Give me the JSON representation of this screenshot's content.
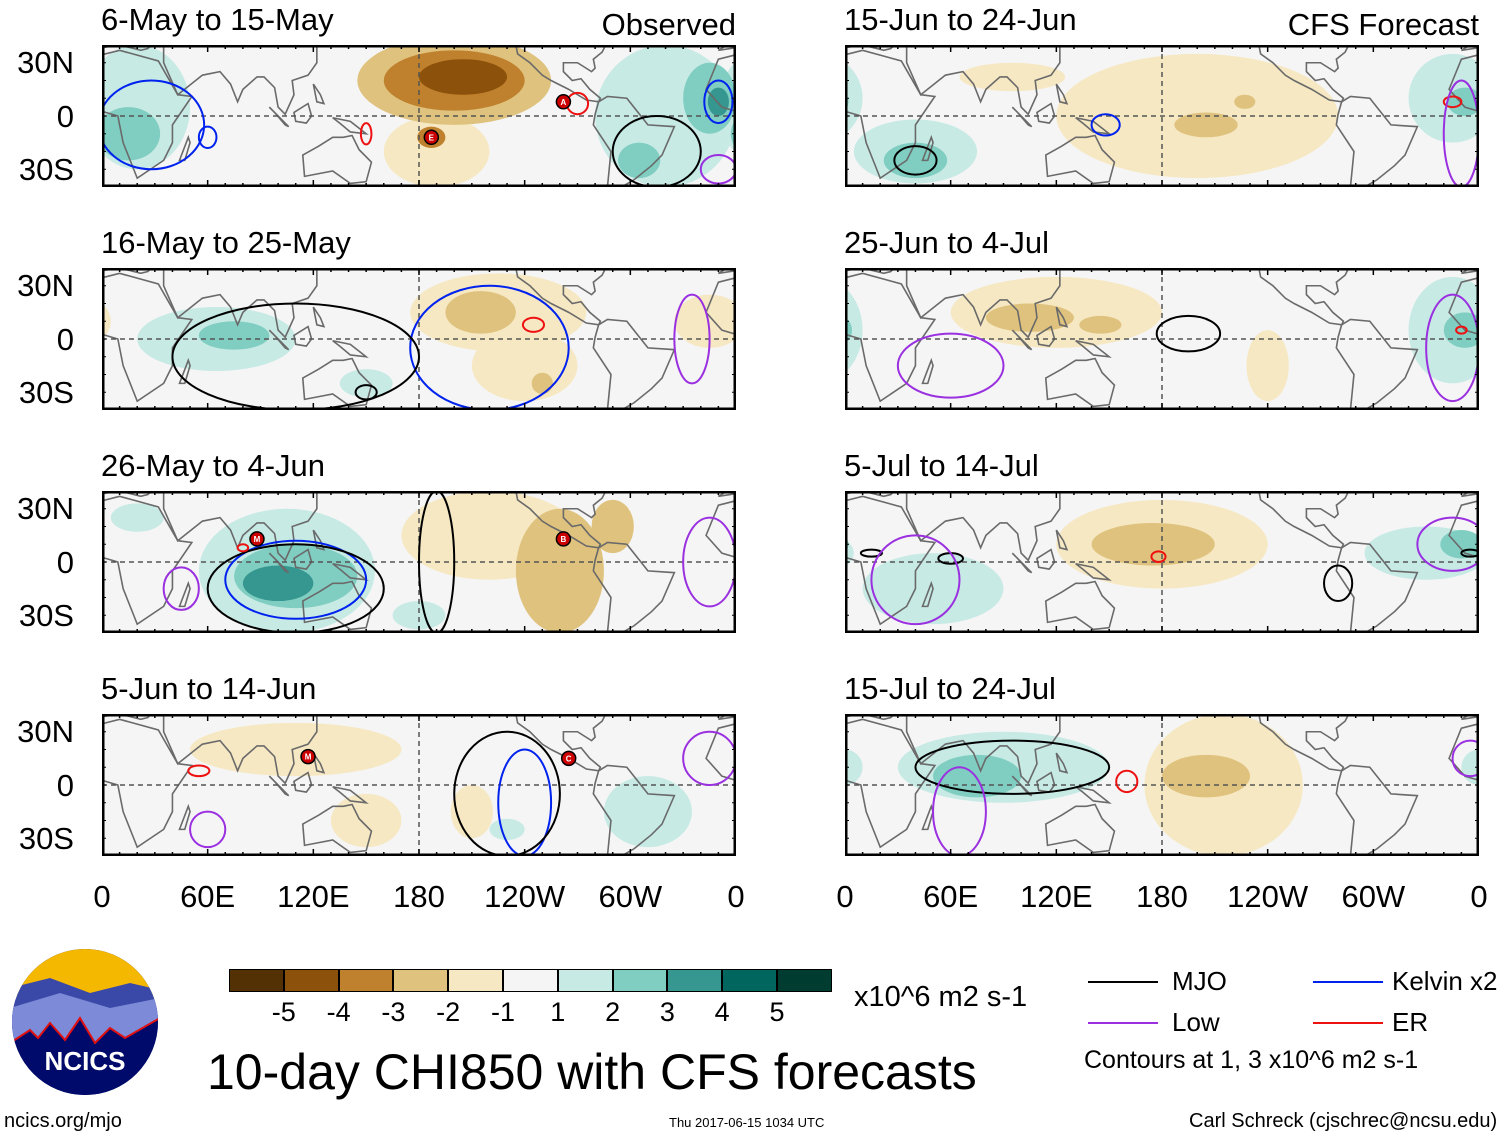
{
  "title": "10-day CHI850 with CFS forecasts",
  "url": "ncics.org/mjo",
  "timestamp": "Thu 2017-06-15 1034 UTC",
  "credit": "Carl Schreck (cjschrec@ncsu.edu)",
  "logo_text": "NCICS",
  "columns": {
    "left": "Observed",
    "right": "CFS Forecast"
  },
  "lat_labels": [
    "30N",
    "0",
    "30S"
  ],
  "lon_labels": [
    "0",
    "60E",
    "120E",
    "180",
    "120W",
    "60W",
    "0"
  ],
  "colorbar": {
    "unit": "x10^6 m2 s-1",
    "labels": [
      "-5",
      "-4",
      "-3",
      "-2",
      "-1",
      "1",
      "2",
      "3",
      "4",
      "5"
    ],
    "colors": [
      "#543005",
      "#8c510a",
      "#bf812d",
      "#dfc27d",
      "#f6e8c3",
      "#f5f5f5",
      "#c7eae5",
      "#80cdc1",
      "#35978f",
      "#01665e",
      "#003c30"
    ]
  },
  "legend": {
    "items": [
      {
        "label": "MJO",
        "color": "#000000"
      },
      {
        "label": "Kelvin x2",
        "color": "#0022ee"
      },
      {
        "label": "Low",
        "color": "#9a30e0"
      },
      {
        "label": "ER",
        "color": "#ee1111"
      }
    ],
    "note": "Contours at 1, 3 x10^6 m2 s-1"
  },
  "chart_data": {
    "type": "map-panels",
    "lat_range": [
      -40,
      40
    ],
    "lon_range": [
      0,
      360
    ],
    "panels": [
      {
        "title": "6-May to 15-May",
        "kind": "Observed",
        "blobs": [
          [
            20,
            5,
            30,
            35,
            1
          ],
          [
            15,
            -10,
            18,
            15,
            2
          ],
          [
            200,
            20,
            55,
            25,
            -2
          ],
          [
            200,
            20,
            40,
            17,
            -3
          ],
          [
            205,
            22,
            25,
            10,
            -4
          ],
          [
            190,
            -20,
            30,
            20,
            -1
          ],
          [
            187,
            -12,
            8,
            6,
            -3
          ],
          [
            320,
            0,
            40,
            40,
            1
          ],
          [
            345,
            10,
            15,
            20,
            2
          ],
          [
            350,
            8,
            6,
            8,
            3
          ],
          [
            305,
            -25,
            12,
            10,
            2
          ]
        ],
        "contours": [
          [
            28,
            -5,
            30,
            25,
            "#0022ee"
          ],
          [
            60,
            -12,
            5,
            6,
            "#0022ee"
          ],
          [
            350,
            8,
            8,
            12,
            "#0022ee"
          ],
          [
            150,
            -10,
            3,
            6,
            "#ee1111"
          ],
          [
            270,
            7,
            6,
            6,
            "#ee1111"
          ],
          [
            315,
            -20,
            25,
            20,
            "#000000"
          ],
          [
            350,
            -30,
            10,
            8,
            "#9a30e0"
          ]
        ],
        "storms": [
          [
            262,
            8,
            "A"
          ],
          [
            187,
            -12,
            "E"
          ]
        ]
      },
      {
        "title": "15-Jun to 24-Jun",
        "kind": "CFS Forecast",
        "blobs": [
          [
            200,
            0,
            80,
            35,
            -1
          ],
          [
            205,
            -5,
            18,
            7,
            -2
          ],
          [
            95,
            22,
            30,
            8,
            -1
          ],
          [
            40,
            -20,
            35,
            18,
            1
          ],
          [
            40,
            -25,
            18,
            10,
            2
          ],
          [
            345,
            10,
            25,
            25,
            1
          ],
          [
            352,
            8,
            10,
            8,
            2
          ],
          [
            227,
            8,
            6,
            4,
            -2
          ]
        ],
        "contours": [
          [
            40,
            -25,
            12,
            8,
            "#000000"
          ],
          [
            148,
            -5,
            8,
            6,
            "#0022ee"
          ],
          [
            345,
            8,
            5,
            3,
            "#ee1111"
          ],
          [
            350,
            -10,
            10,
            30,
            "#9a30e0"
          ]
        ],
        "storms": []
      },
      {
        "title": "16-May to 25-May",
        "kind": "Observed",
        "blobs": [
          [
            65,
            0,
            45,
            18,
            1
          ],
          [
            75,
            2,
            20,
            8,
            2
          ],
          [
            150,
            -25,
            15,
            8,
            1
          ],
          [
            225,
            15,
            50,
            22,
            -1
          ],
          [
            215,
            15,
            20,
            12,
            -2
          ],
          [
            240,
            -15,
            30,
            20,
            -1
          ],
          [
            250,
            -25,
            6,
            6,
            -2
          ],
          [
            345,
            10,
            20,
            15,
            -1
          ]
        ],
        "contours": [
          [
            220,
            -5,
            45,
            35,
            "#0022ee"
          ],
          [
            245,
            8,
            6,
            4,
            "#ee1111"
          ],
          [
            150,
            -30,
            6,
            4,
            "#000000"
          ],
          [
            110,
            -10,
            70,
            30,
            "#000000"
          ],
          [
            335,
            0,
            10,
            25,
            "#9a30e0"
          ]
        ],
        "storms": []
      },
      {
        "title": "25-Jun to 4-Jul",
        "kind": "CFS Forecast",
        "blobs": [
          [
            120,
            15,
            60,
            20,
            -1
          ],
          [
            105,
            12,
            25,
            8,
            -2
          ],
          [
            145,
            8,
            12,
            5,
            -2
          ],
          [
            345,
            5,
            25,
            30,
            1
          ],
          [
            352,
            5,
            12,
            10,
            2
          ],
          [
            240,
            -15,
            12,
            20,
            -1
          ]
        ],
        "contours": [
          [
            195,
            3,
            18,
            10,
            "#000000"
          ],
          [
            350,
            5,
            3,
            2,
            "#ee1111"
          ],
          [
            60,
            -15,
            30,
            18,
            "#9a30e0"
          ],
          [
            345,
            -5,
            15,
            30,
            "#9a30e0"
          ]
        ],
        "storms": []
      },
      {
        "title": "26-May to 4-Jun",
        "kind": "Observed",
        "blobs": [
          [
            105,
            -5,
            50,
            35,
            1
          ],
          [
            110,
            -8,
            35,
            18,
            2
          ],
          [
            100,
            -12,
            20,
            10,
            3
          ],
          [
            220,
            15,
            50,
            25,
            -1
          ],
          [
            260,
            -5,
            25,
            35,
            -2
          ],
          [
            290,
            20,
            12,
            15,
            -2
          ],
          [
            180,
            -30,
            15,
            8,
            1
          ],
          [
            20,
            25,
            15,
            8,
            1
          ]
        ],
        "contours": [
          [
            110,
            -10,
            40,
            22,
            "#0022ee"
          ],
          [
            110,
            -15,
            50,
            25,
            "#000000"
          ],
          [
            190,
            0,
            10,
            40,
            "#000000"
          ],
          [
            80,
            8,
            3,
            2,
            "#ee1111"
          ],
          [
            45,
            -15,
            10,
            12,
            "#9a30e0"
          ],
          [
            345,
            0,
            15,
            25,
            "#9a30e0"
          ]
        ],
        "storms": [
          [
            88,
            13,
            "M"
          ],
          [
            262,
            13,
            "B"
          ]
        ]
      },
      {
        "title": "5-Jul to 14-Jul",
        "kind": "CFS Forecast",
        "blobs": [
          [
            180,
            10,
            60,
            25,
            -1
          ],
          [
            175,
            10,
            35,
            12,
            -2
          ],
          [
            50,
            -15,
            40,
            20,
            1
          ],
          [
            330,
            5,
            35,
            15,
            1
          ],
          [
            350,
            10,
            12,
            8,
            2
          ]
        ],
        "contours": [
          [
            60,
            2,
            7,
            3,
            "#000000"
          ],
          [
            15,
            5,
            6,
            2,
            "#000000"
          ],
          [
            280,
            -12,
            8,
            10,
            "#000000"
          ],
          [
            355,
            5,
            5,
            2,
            "#000000"
          ],
          [
            178,
            3,
            4,
            3,
            "#ee1111"
          ],
          [
            40,
            -10,
            25,
            25,
            "#9a30e0"
          ],
          [
            345,
            10,
            20,
            15,
            "#9a30e0"
          ]
        ],
        "storms": []
      },
      {
        "title": "5-Jun to 14-Jun",
        "kind": "Observed",
        "blobs": [
          [
            110,
            20,
            60,
            15,
            -1
          ],
          [
            150,
            -20,
            20,
            15,
            -1
          ],
          [
            210,
            -15,
            12,
            15,
            -1
          ],
          [
            310,
            -15,
            25,
            20,
            1
          ],
          [
            230,
            -25,
            10,
            6,
            1
          ]
        ],
        "contours": [
          [
            55,
            8,
            6,
            3,
            "#ee1111"
          ],
          [
            240,
            -10,
            15,
            30,
            "#0022ee"
          ],
          [
            230,
            -5,
            30,
            35,
            "#000000"
          ],
          [
            60,
            -25,
            10,
            10,
            "#9a30e0"
          ],
          [
            345,
            15,
            15,
            15,
            "#9a30e0"
          ]
        ],
        "storms": [
          [
            117,
            16,
            "M"
          ],
          [
            265,
            15,
            "C"
          ]
        ]
      },
      {
        "title": "15-Jul to 24-Jul",
        "kind": "CFS Forecast",
        "blobs": [
          [
            90,
            10,
            60,
            20,
            1
          ],
          [
            75,
            5,
            25,
            12,
            2
          ],
          [
            215,
            0,
            45,
            40,
            -1
          ],
          [
            205,
            5,
            25,
            12,
            -2
          ],
          [
            360,
            10,
            10,
            10,
            1
          ]
        ],
        "contours": [
          [
            95,
            10,
            55,
            15,
            "#000000"
          ],
          [
            160,
            2,
            6,
            6,
            "#ee1111"
          ],
          [
            65,
            -15,
            15,
            25,
            "#9a30e0"
          ],
          [
            355,
            15,
            10,
            10,
            "#9a30e0"
          ]
        ],
        "storms": []
      }
    ]
  }
}
